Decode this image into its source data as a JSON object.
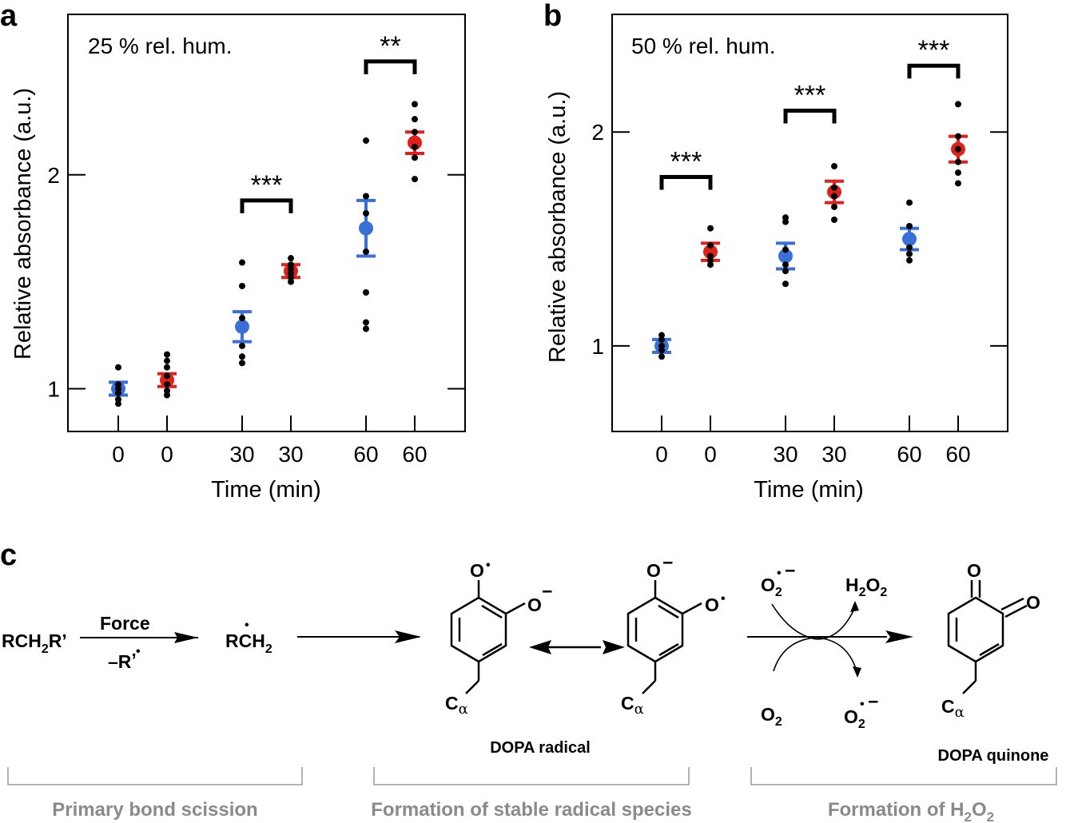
{
  "panels": {
    "a": {
      "letter": "a",
      "condition": "25 % rel. hum."
    },
    "b": {
      "letter": "b",
      "condition": "50 % rel. hum."
    },
    "c": {
      "letter": "c"
    }
  },
  "colors": {
    "blue": "#3a6fd8",
    "red": "#e0201b",
    "dots": "#000000"
  },
  "chart_data": [
    {
      "type": "scatter",
      "panel": "a",
      "title": "25 % rel. hum.",
      "xlabel": "Time (min)",
      "ylabel": "Relative absorbance (a.u.)",
      "categories": [
        "0",
        "0",
        "30",
        "30",
        "60",
        "60"
      ],
      "ylim": [
        0.8,
        2.75
      ],
      "yticks": [
        1,
        2
      ],
      "series": [
        {
          "color": "blue",
          "categories_idx": [
            0,
            2,
            4
          ],
          "mean": [
            1.0,
            1.29,
            1.75
          ],
          "err": [
            0.03,
            0.07,
            0.13
          ],
          "points": [
            [
              1.1,
              1.02,
              1.0,
              0.98,
              0.95,
              0.93
            ],
            [
              1.59,
              1.48,
              1.33,
              1.2,
              1.15,
              1.12
            ],
            [
              2.16,
              1.9,
              1.82,
              1.64,
              1.45,
              1.31,
              1.28
            ]
          ]
        },
        {
          "color": "red",
          "categories_idx": [
            1,
            3,
            5
          ],
          "mean": [
            1.04,
            1.55,
            2.15
          ],
          "err": [
            0.03,
            0.03,
            0.05
          ],
          "points": [
            [
              1.16,
              1.13,
              1.1,
              1.06,
              1.02,
              0.99,
              0.97
            ],
            [
              1.61,
              1.58,
              1.56,
              1.54,
              1.52,
              1.5
            ],
            [
              2.33,
              2.26,
              2.2,
              2.13,
              2.08,
              1.98
            ]
          ]
        }
      ],
      "significance": [
        {
          "from": 2,
          "to": 3,
          "label": "***",
          "y": 1.88
        },
        {
          "from": 4,
          "to": 5,
          "label": "**",
          "y": 2.53
        }
      ]
    },
    {
      "type": "scatter",
      "panel": "b",
      "title": "50 % rel. hum.",
      "xlabel": "Time (min)",
      "ylabel": "Relative absorbance (a.u.)",
      "categories": [
        "0",
        "0",
        "30",
        "30",
        "60",
        "60"
      ],
      "ylim": [
        0.6,
        2.55
      ],
      "yticks": [
        1,
        2
      ],
      "series": [
        {
          "color": "blue",
          "categories_idx": [
            0,
            2,
            4
          ],
          "mean": [
            1.0,
            1.42,
            1.5
          ],
          "err": [
            0.03,
            0.06,
            0.05
          ],
          "points": [
            [
              1.05,
              1.03,
              1.0,
              0.98,
              0.95
            ],
            [
              1.6,
              1.58,
              1.45,
              1.38,
              1.35,
              1.29
            ],
            [
              1.67,
              1.56,
              1.46,
              1.43,
              1.4
            ]
          ]
        },
        {
          "color": "red",
          "categories_idx": [
            1,
            3,
            5
          ],
          "mean": [
            1.44,
            1.72,
            1.92
          ],
          "err": [
            0.04,
            0.05,
            0.06
          ],
          "points": [
            [
              1.55,
              1.47,
              1.42,
              1.4,
              1.38
            ],
            [
              1.84,
              1.74,
              1.7,
              1.65,
              1.59
            ],
            [
              2.13,
              1.98,
              1.92,
              1.86,
              1.81,
              1.76
            ]
          ]
        }
      ],
      "significance": [
        {
          "from": 0,
          "to": 1,
          "label": "***",
          "y": 1.79
        },
        {
          "from": 2,
          "to": 3,
          "label": "***",
          "y": 2.1
        },
        {
          "from": 4,
          "to": 5,
          "label": "***",
          "y": 2.31
        }
      ]
    }
  ],
  "scheme": {
    "reactant": "RCH",
    "reactant_sub": "2",
    "reactant_tail": "R’",
    "arrow_top": "Force",
    "arrow_bottom": "–R",
    "arrow_bottom_tail": "’",
    "product": "RCH",
    "product_sub": "2",
    "o_radical": "O",
    "o_anion": "O",
    "c_alpha": "C",
    "alpha": "α",
    "dopa_radical": "DOPA radical",
    "dopa_quinone": "DOPA quinone",
    "o2": "O",
    "o2_sub": "2",
    "h2o2_h": "H",
    "h2o2_o": "O",
    "h2o2_sub": "2",
    "minus": "−",
    "dot": "•",
    "quinone_o": "O",
    "section1": "Primary bond scission",
    "section2": "Formation of stable radical species",
    "section3_prefix": "Formation of H",
    "section3_sub1": "2",
    "section3_mid": "O",
    "section3_sub2": "2"
  }
}
